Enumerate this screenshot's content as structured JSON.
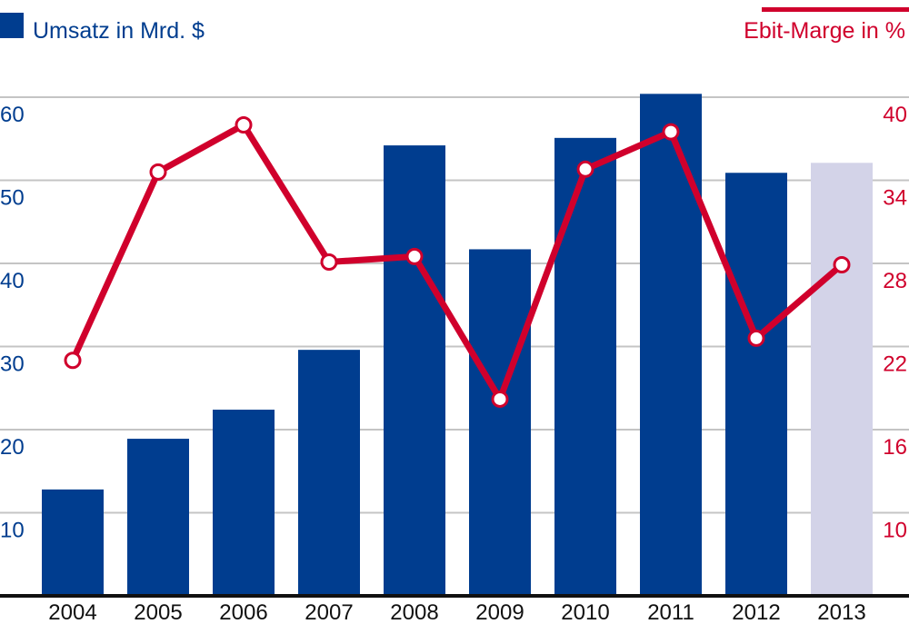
{
  "chart_data": {
    "type": "bar+line",
    "categories": [
      "2004",
      "2005",
      "2006",
      "2007",
      "2008",
      "2009",
      "2010",
      "2011",
      "2012",
      "2013"
    ],
    "series": [
      {
        "name": "Umsatz in Mrd. $",
        "type": "bar",
        "axis": "left",
        "values": [
          12.8,
          18.9,
          22.4,
          29.6,
          54.2,
          41.7,
          55.1,
          60.4,
          50.9,
          52.1
        ],
        "color": "#003d8f",
        "highlight_color": "#d3d3e8",
        "highlight_index": 9
      },
      {
        "name": "Ebit-Marge in %",
        "type": "line",
        "axis": "right",
        "values": [
          21.0,
          34.6,
          38.0,
          28.1,
          28.5,
          18.2,
          34.8,
          37.5,
          22.6,
          27.9
        ],
        "color": "#d0002c"
      }
    ],
    "left_axis": {
      "ticks": [
        10,
        20,
        30,
        40,
        50,
        60
      ],
      "range": [
        0,
        65
      ],
      "color": "#003d8f"
    },
    "right_axis": {
      "ticks": [
        10,
        16,
        22,
        28,
        34,
        40
      ],
      "range": [
        4,
        43
      ],
      "color": "#d0002c"
    },
    "legend": {
      "left": "Umsatz in Mrd. $",
      "right": "Ebit-Marge in %"
    },
    "grid": true
  }
}
